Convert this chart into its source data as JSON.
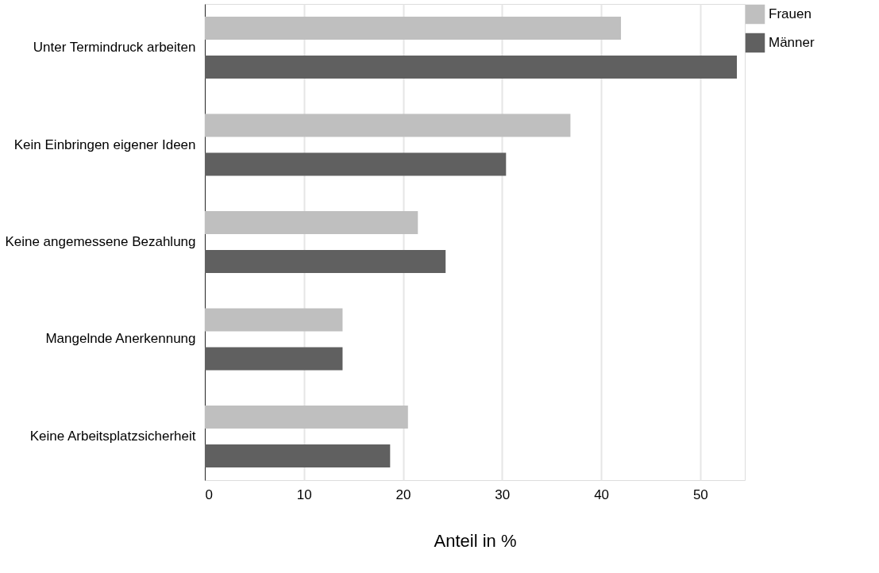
{
  "chart_data": {
    "type": "bar",
    "orientation": "horizontal",
    "xlabel": "Anteil in %",
    "categories": [
      "Unter Termindruck arbeiten",
      "Kein Einbringen eigener Ideen",
      "Keine angemessene Bezahlung",
      "Mangelnde Anerkennung",
      "Keine Arbeitsplatzsicherheit"
    ],
    "series": [
      {
        "name": "Frauen",
        "color": "#bfbfbf",
        "values": [
          42,
          36.9,
          21.5,
          13.9,
          20.5
        ]
      },
      {
        "name": "Männer",
        "color": "#606060",
        "values": [
          53.7,
          30.4,
          24.3,
          13.9,
          18.7
        ]
      }
    ],
    "xlim": [
      0,
      54.5
    ],
    "xticks": [
      0,
      10,
      20,
      30,
      40,
      50
    ],
    "grid": "x",
    "legend": "right"
  }
}
